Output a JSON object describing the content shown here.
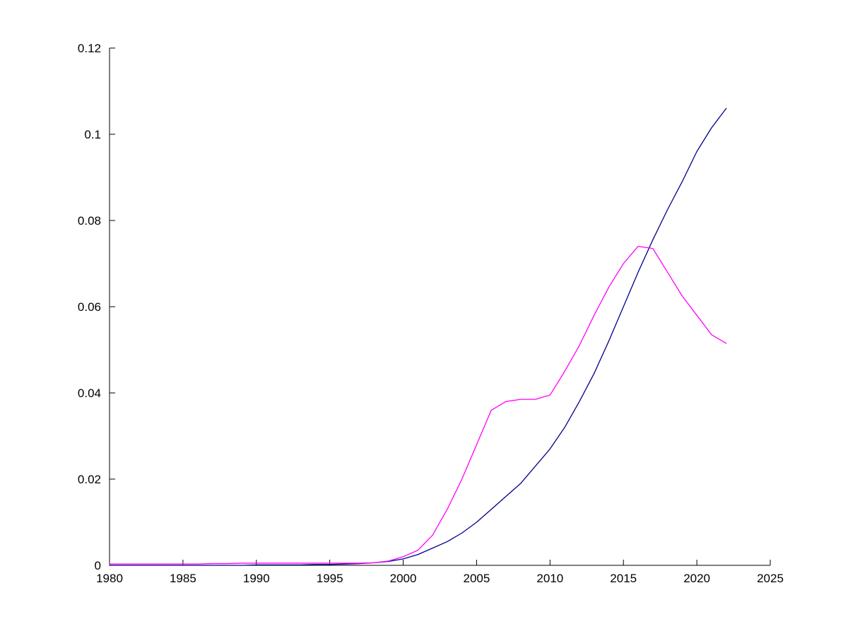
{
  "figure": {
    "background": "#ffffff",
    "axis_color": "#000000"
  },
  "chart_data": {
    "type": "line",
    "title": "",
    "xlabel": "",
    "ylabel": "",
    "grid": false,
    "legend_position": "none",
    "xlim": [
      1980,
      2025
    ],
    "ylim": [
      0,
      0.12
    ],
    "x_ticks": [
      1980,
      1985,
      1990,
      1995,
      2000,
      2005,
      2010,
      2015,
      2020,
      2025
    ],
    "x_tick_labels": [
      "1980",
      "1985",
      "1990",
      "1995",
      "2000",
      "2005",
      "2010",
      "2015",
      "2020",
      "2025"
    ],
    "y_ticks": [
      0,
      0.02,
      0.04,
      0.06,
      0.08,
      0.1,
      0.12
    ],
    "y_tick_labels": [
      "0",
      "0.02",
      "0.04",
      "0.06",
      "0.08",
      "0.1",
      "0.12"
    ],
    "x": [
      1980,
      1981,
      1982,
      1983,
      1984,
      1985,
      1986,
      1987,
      1988,
      1989,
      1990,
      1991,
      1992,
      1993,
      1994,
      1995,
      1996,
      1997,
      1998,
      1999,
      2000,
      2001,
      2002,
      2003,
      2004,
      2005,
      2006,
      2007,
      2008,
      2009,
      2010,
      2011,
      2012,
      2013,
      2014,
      2015,
      2016,
      2017,
      2018,
      2019,
      2020,
      2021,
      2022
    ],
    "series": [
      {
        "name": "blue-series",
        "color": "#00008b",
        "values": [
          0.0,
          0.0,
          0.0,
          0.0,
          0.0,
          0.0,
          0.0,
          0.0,
          0.0,
          0.0,
          0.0001,
          0.0001,
          0.0001,
          0.0001,
          0.0002,
          0.0002,
          0.0003,
          0.0004,
          0.0006,
          0.0009,
          0.0015,
          0.0025,
          0.004,
          0.0055,
          0.0075,
          0.01,
          0.013,
          0.016,
          0.019,
          0.023,
          0.027,
          0.032,
          0.038,
          0.0445,
          0.052,
          0.06,
          0.068,
          0.0755,
          0.0825,
          0.089,
          0.096,
          0.1015,
          0.106
        ]
      },
      {
        "name": "magenta-series",
        "color": "#ff00ff",
        "values": [
          0.0003,
          0.0003,
          0.0003,
          0.0003,
          0.0003,
          0.0003,
          0.0003,
          0.0004,
          0.0004,
          0.0005,
          0.0005,
          0.0005,
          0.0005,
          0.0005,
          0.0005,
          0.0005,
          0.0005,
          0.0005,
          0.0006,
          0.001,
          0.002,
          0.0035,
          0.007,
          0.013,
          0.02,
          0.028,
          0.036,
          0.038,
          0.0385,
          0.0385,
          0.0395,
          0.045,
          0.051,
          0.058,
          0.0645,
          0.07,
          0.074,
          0.0735,
          0.068,
          0.0625,
          0.058,
          0.0535,
          0.0515
        ]
      }
    ]
  }
}
